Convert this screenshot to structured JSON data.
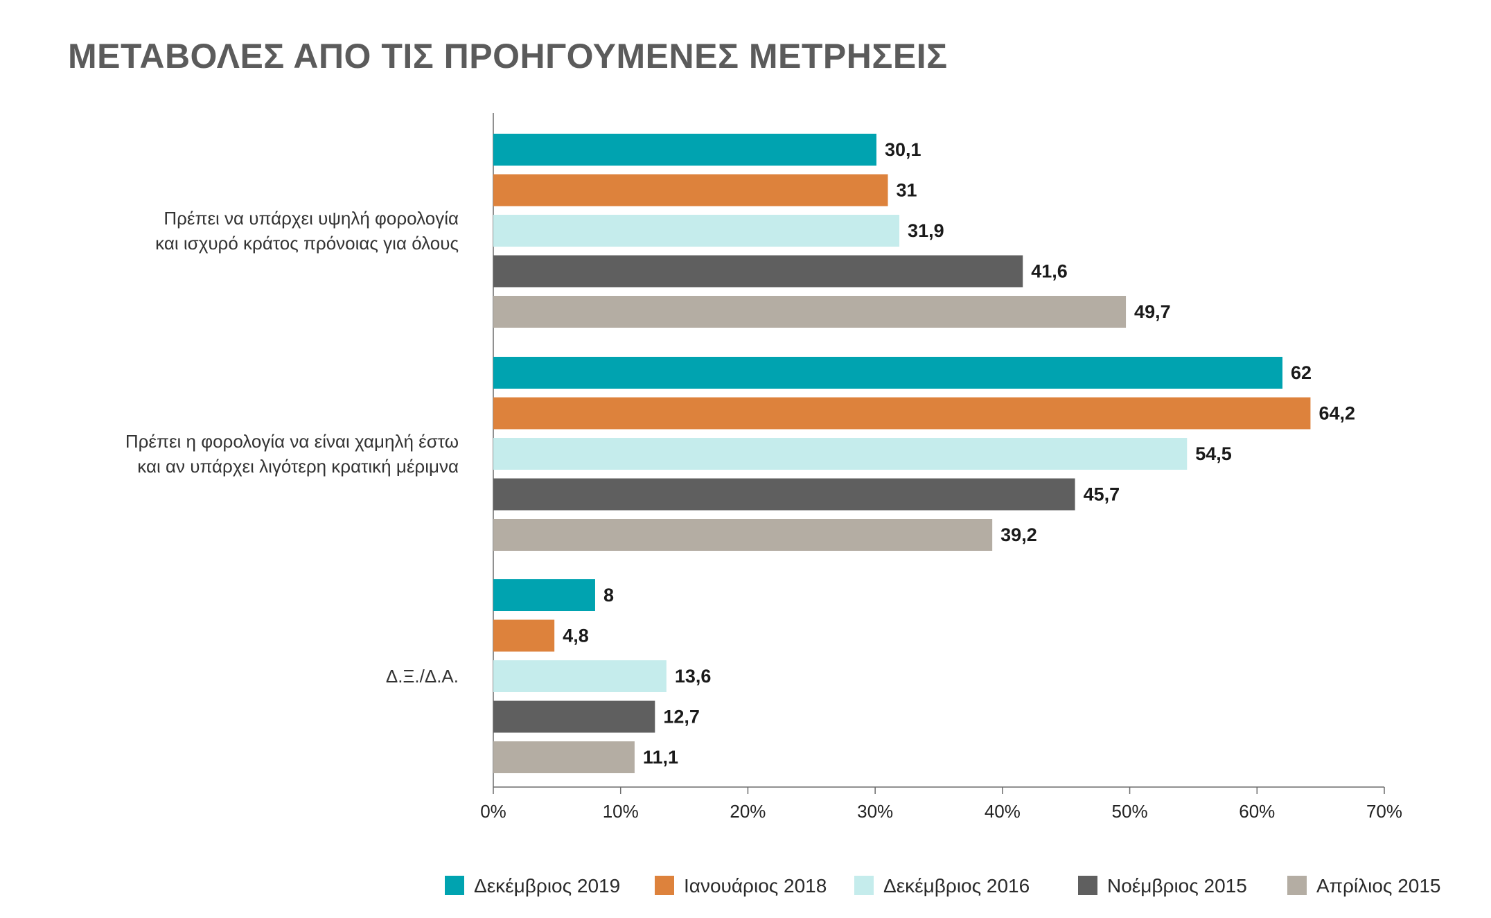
{
  "chart_data": {
    "type": "bar",
    "orientation": "horizontal",
    "title": "ΜΕΤΑΒΟΛΕΣ ΑΠΟ ΤΙΣ ΠΡΟΗΓΟΥΜΕΝΕΣ ΜΕΤΡΗΣΕΙΣ",
    "xlabel": "",
    "ylabel": "",
    "xlim": [
      0,
      70
    ],
    "x_ticks": [
      "0%",
      "10%",
      "20%",
      "30%",
      "40%",
      "50%",
      "60%",
      "70%"
    ],
    "grid": false,
    "legend_position": "bottom",
    "categories": [
      [
        "Πρέπει να υπάρχει υψηλή φορολογία",
        "και ισχυρό κράτος πρόνοιας για όλους"
      ],
      [
        "Πρέπει η φορολογία να είναι χαμηλή έστω",
        "και αν υπάρχει  λιγότερη κρατική μέριμνα"
      ],
      [
        "Δ.Ξ./Δ.Α."
      ]
    ],
    "series": [
      {
        "name": "Δεκέμβριος 2019",
        "color": "#00a3b0",
        "values": [
          30.1,
          62,
          8
        ],
        "labels": [
          "30,1",
          "62",
          "8"
        ]
      },
      {
        "name": "Ιανουάριος 2018",
        "color": "#dd823c",
        "values": [
          31,
          64.2,
          4.8
        ],
        "labels": [
          "31",
          "64,2",
          "4,8"
        ]
      },
      {
        "name": "Δεκέμβριος 2016",
        "color": "#c5ecec",
        "values": [
          31.9,
          54.5,
          13.6
        ],
        "labels": [
          "31,9",
          "54,5",
          "13,6"
        ]
      },
      {
        "name": "Νοέμβριος 2015",
        "color": "#5f5f5f",
        "values": [
          41.6,
          45.7,
          12.7
        ],
        "labels": [
          "41,6",
          "45,7",
          "12,7"
        ]
      },
      {
        "name": "Απρίλιος 2015",
        "color": "#b4ada3",
        "values": [
          49.7,
          39.2,
          11.1
        ],
        "labels": [
          "49,7",
          "39,2",
          "11,1"
        ]
      }
    ]
  }
}
